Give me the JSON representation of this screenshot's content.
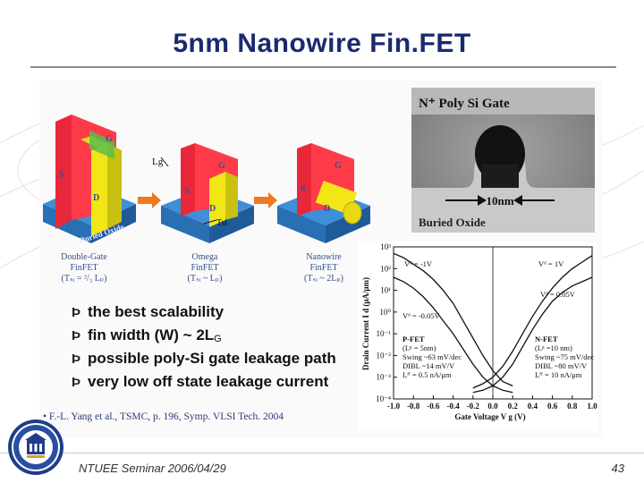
{
  "slide": {
    "title": "5nm Nanowire Fin.FET",
    "footer": "NTUEE Seminar 2006/04/29",
    "page_number": "43",
    "reference": "• F.-L. Yang et al., TSMC, p. 196, Symp. VLSI Tech. 2004"
  },
  "devices": [
    {
      "name": "Double-Gate",
      "kind": "FinFET",
      "rule": "(Tₛᵢ = ²/₃ Lₚ)"
    },
    {
      "name": "Omega",
      "kind": "FinFET",
      "rule": "(Tₛᵢ ~ Lₚ)"
    },
    {
      "name": "Nanowire",
      "kind": "FinFET",
      "rule": "(Tₛᵢ ~ 2Lₚ)"
    }
  ],
  "device_labels": {
    "gate": "G",
    "source": "S",
    "drain": "D",
    "lg": "Lg",
    "tsi": "Tsi",
    "oxide": "Buried Oxide"
  },
  "tem": {
    "gate_label": "N⁺ Poly Si Gate",
    "scale": "10nm",
    "oxide": "Buried Oxide"
  },
  "bullets": [
    {
      "mark": "Þ",
      "text": "the best scalability"
    },
    {
      "mark": "Þ",
      "text": "fin width (W) ~ 2L",
      "sub": "G"
    },
    {
      "mark": "Þ",
      "text": "possible poly-Si gate leakage path"
    },
    {
      "mark": "Þ",
      "text": "very low off state leakage current"
    }
  ],
  "chart_data": {
    "type": "line",
    "xlabel": "Gate Voltage V",
    "xlabel_sub": "g",
    "xlabel_unit": "(V)",
    "ylabel": "Drain Current I",
    "ylabel_sub": "d",
    "ylabel_unit": "(μA/μm)",
    "xlim": [
      -1.0,
      1.0
    ],
    "xticks": [
      "-1.0",
      "-0.8",
      "-0.6",
      "-0.4",
      "-0.2",
      "0.0",
      "0.2",
      "0.4",
      "0.6",
      "0.8",
      "1.0"
    ],
    "ylim_log10": [
      -4,
      3
    ],
    "yticks": [
      "10³",
      "10²",
      "10¹",
      "10⁰",
      "10⁻¹",
      "10⁻²",
      "10⁻³",
      "10⁻⁴"
    ],
    "series": [
      {
        "x": [
          -1.0,
          -0.9,
          -0.8,
          -0.7,
          -0.6,
          -0.5,
          -0.4,
          -0.3,
          -0.2,
          -0.1,
          0.0,
          0.1,
          0.2
        ],
        "y_log10": [
          2.7,
          2.5,
          2.2,
          1.9,
          1.5,
          1.0,
          0.4,
          -0.4,
          -1.2,
          -2.0,
          -2.7,
          -3.2,
          -3.4
        ]
      },
      {
        "x": [
          -1.0,
          -0.9,
          -0.8,
          -0.7,
          -0.6,
          -0.5,
          -0.4,
          -0.3,
          -0.2,
          -0.1,
          0.0,
          0.1,
          0.2
        ],
        "y_log10": [
          1.6,
          1.4,
          1.1,
          0.7,
          0.2,
          -0.4,
          -1.0,
          -1.7,
          -2.4,
          -3.0,
          -3.4,
          -3.6,
          -3.7
        ]
      },
      {
        "x": [
          -0.2,
          -0.1,
          0.0,
          0.1,
          0.2,
          0.3,
          0.4,
          0.5,
          0.6,
          0.7,
          0.8,
          0.9,
          1.0
        ],
        "y_log10": [
          -3.5,
          -3.3,
          -3.0,
          -2.5,
          -1.8,
          -1.0,
          -0.2,
          0.5,
          1.1,
          1.6,
          2.0,
          2.3,
          2.6
        ]
      },
      {
        "x": [
          -0.2,
          -0.1,
          0.0,
          0.1,
          0.2,
          0.3,
          0.4,
          0.5,
          0.6,
          0.7,
          0.8,
          0.9,
          1.0
        ],
        "y_log10": [
          -3.7,
          -3.6,
          -3.4,
          -3.0,
          -2.4,
          -1.6,
          -0.8,
          -0.1,
          0.5,
          0.9,
          1.2,
          1.4,
          1.6
        ]
      }
    ],
    "annotations": {
      "pfet_vd1": "Vᵈ = -1V",
      "nfet_vd1": "Vᵈ = 1V",
      "nfet_vd2": "Vᵈ = 0.05V",
      "pfet_vd2": "Vᵈ = -0.05V",
      "pfet_block": [
        "P-FET",
        "(Lᵍ = 5nm)",
        "Swing ~63 mV/dec",
        "DIBL ~14 mV/V",
        "Iₒᶠᶠ = 0.5 nA/μm"
      ],
      "nfet_block": [
        "N-FET",
        "(Lᵍ =10 nm)",
        "Swing ~75 mV/dec",
        "DIBL ~80 mV/V",
        "Iₒᶠᶠ = 10 nA/μm"
      ]
    }
  },
  "colors": {
    "title": "#1a2a6e",
    "gate": "#e8283a",
    "fin": "#f2e617",
    "oxide": "#3f8fd8",
    "arrow": "#f07820"
  }
}
